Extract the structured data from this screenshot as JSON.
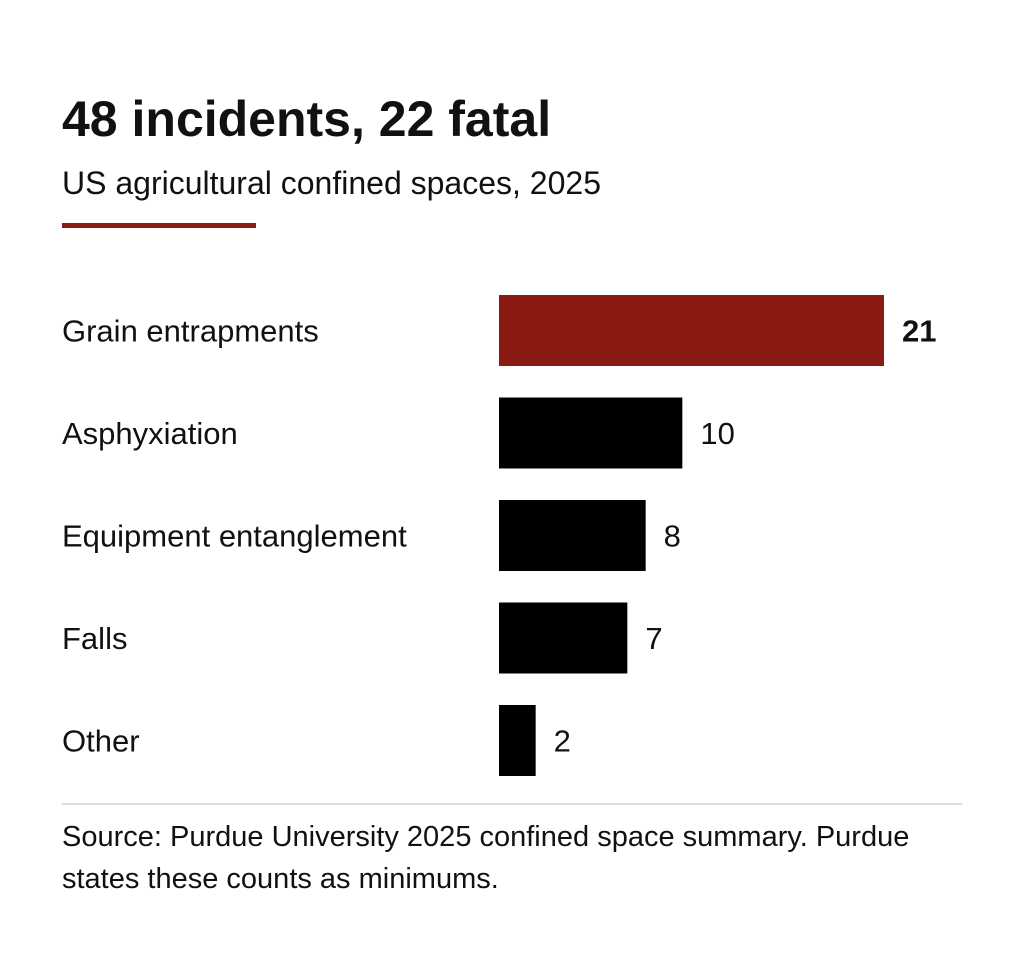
{
  "colors": {
    "accent": "#8b1a12",
    "bar": "#000000",
    "text": "#111111",
    "rule": "#dddddd"
  },
  "chart_data": {
    "type": "bar",
    "orientation": "horizontal",
    "title": "48 incidents, 22 fatal",
    "subtitle": "US agricultural confined spaces, 2025",
    "categories": [
      "Grain entrapments",
      "Asphyxiation",
      "Equipment entanglement",
      "Falls",
      "Other"
    ],
    "values": [
      21,
      10,
      8,
      7,
      2
    ],
    "value_labels": [
      "21",
      "10",
      "8",
      "7",
      "2"
    ],
    "highlight_index": 0,
    "xlim": [
      0,
      21
    ],
    "grid": false,
    "legend": "none"
  },
  "source": "Source: Purdue University 2025 confined space summary. Purdue states these counts as minimums."
}
